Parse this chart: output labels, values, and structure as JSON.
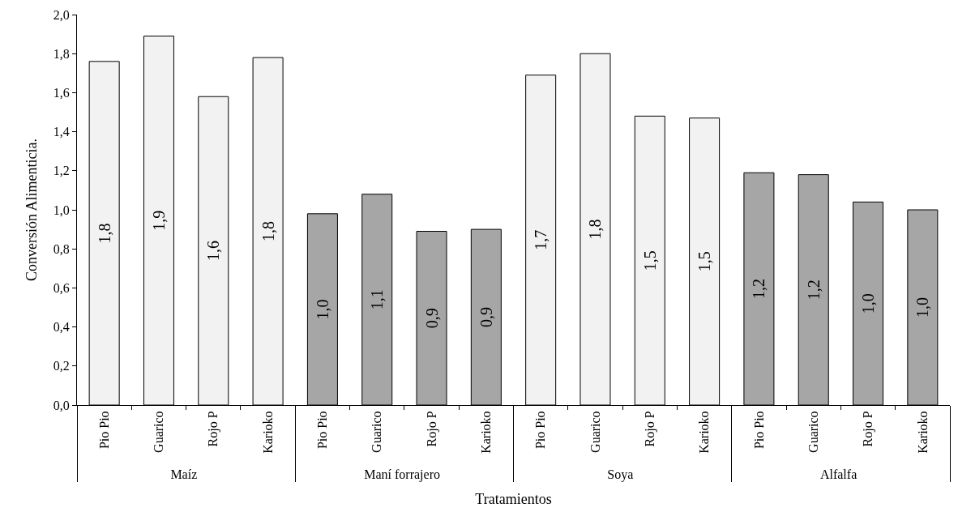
{
  "chart_data": {
    "type": "bar",
    "xlabel": "Tratamientos",
    "ylabel": "Conversión Alimenticia.",
    "categories": [
      "Pio Pio",
      "Guarico",
      "Rojo P",
      "Karioko",
      "Pio Pio",
      "Guarico",
      "Rojo P",
      "Karioko",
      "Pio Pio",
      "Guarico",
      "Rojo P",
      "Karioko",
      "Pio Pio",
      "Guarico",
      "Rojo P",
      "Karioko"
    ],
    "values": [
      1.76,
      1.89,
      1.58,
      1.78,
      0.98,
      1.08,
      0.89,
      0.9,
      1.69,
      1.8,
      1.48,
      1.47,
      1.19,
      1.18,
      1.04,
      1.0
    ],
    "value_labels": [
      "1,8",
      "1,9",
      "1,6",
      "1,8",
      "1,0",
      "1,1",
      "0,9",
      "0,9",
      "1,7",
      "1,8",
      "1,5",
      "1,5",
      "1,2",
      "1,2",
      "1,0",
      "1,0"
    ],
    "colors": [
      "#f2f2f2",
      "#f2f2f2",
      "#f2f2f2",
      "#f2f2f2",
      "#a6a6a6",
      "#a6a6a6",
      "#a6a6a6",
      "#a6a6a6",
      "#f2f2f2",
      "#f2f2f2",
      "#f2f2f2",
      "#f2f2f2",
      "#a6a6a6",
      "#a6a6a6",
      "#a6a6a6",
      "#a6a6a6"
    ],
    "annotations": [
      "Maíz",
      "Maní forrajero",
      "Soya",
      "Alfalfa"
    ],
    "ylim": [
      0,
      2.0
    ],
    "yticks": [
      {
        "value": 0,
        "label": "0,0"
      },
      {
        "value": 0.2,
        "label": "0,2"
      },
      {
        "value": 0.4,
        "label": "0,4"
      },
      {
        "value": 0.6,
        "label": "0,6"
      },
      {
        "value": 0.8,
        "label": "0,8"
      },
      {
        "value": 1.0,
        "label": "1,0"
      },
      {
        "value": 1.2,
        "label": "1,2"
      },
      {
        "value": 1.4,
        "label": "1,4"
      },
      {
        "value": 1.6,
        "label": "1,6"
      },
      {
        "value": 1.8,
        "label": "1,8"
      },
      {
        "value": 2.0,
        "label": "2,0"
      }
    ]
  }
}
